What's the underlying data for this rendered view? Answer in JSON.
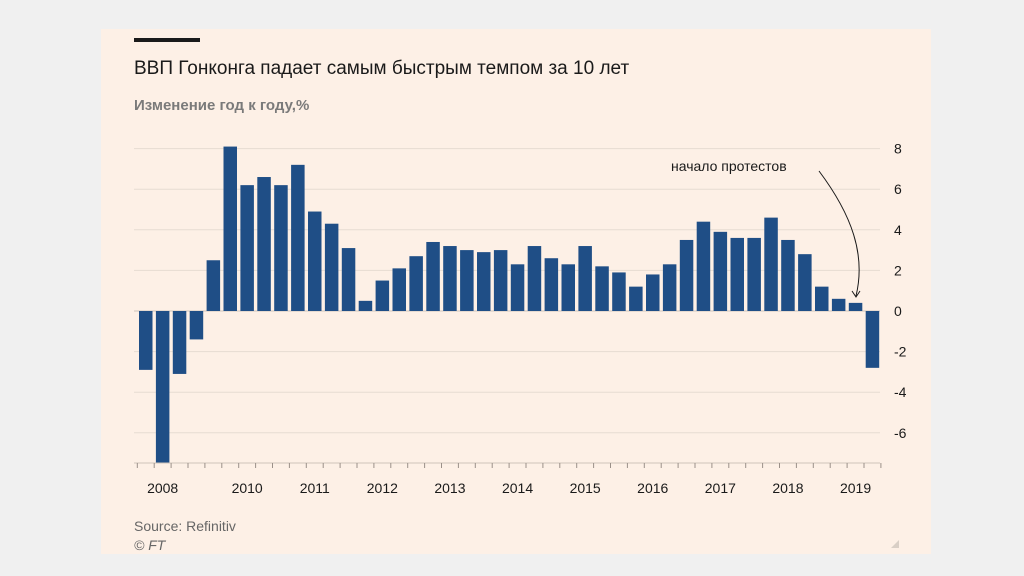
{
  "title": "ВВП Гонконга падает самым быстрым темпом за 10 лет",
  "subtitle": "Изменение год к году,%",
  "source": "Source: Refinitiv",
  "copyright": "© FT",
  "colors": {
    "bar": "#1f4e86",
    "grid": "#e6dcd2",
    "background": "#fdf0e6",
    "text": "#1a1a1a"
  },
  "chart_data": {
    "type": "bar",
    "title": "ВВП Гонконга падает самым быстрым темпом за 10 лет",
    "ylabel": "Изменение год к году,%",
    "xlabel": "",
    "ylim": [
      -7.5,
      8.5
    ],
    "yticks": [
      -6,
      -4,
      -2,
      0,
      2,
      4,
      6,
      8
    ],
    "xticks": [
      "2008",
      "2010",
      "2011",
      "2012",
      "2013",
      "2014",
      "2015",
      "2016",
      "2017",
      "2018",
      "2019"
    ],
    "grid": true,
    "y_axis_side": "right",
    "values": [
      -2.9,
      -7.8,
      -3.1,
      -1.4,
      2.5,
      8.1,
      6.2,
      6.6,
      6.2,
      7.2,
      4.9,
      4.3,
      3.1,
      0.5,
      1.5,
      2.1,
      2.7,
      3.4,
      3.2,
      3.0,
      2.9,
      3.0,
      2.3,
      3.2,
      2.6,
      2.3,
      3.2,
      2.2,
      1.9,
      1.2,
      1.8,
      2.3,
      3.5,
      4.4,
      3.9,
      3.6,
      3.6,
      4.6,
      3.5,
      2.8,
      1.2,
      0.6,
      0.4,
      -2.8
    ],
    "annotation": {
      "text": "начало протестов"
    }
  }
}
